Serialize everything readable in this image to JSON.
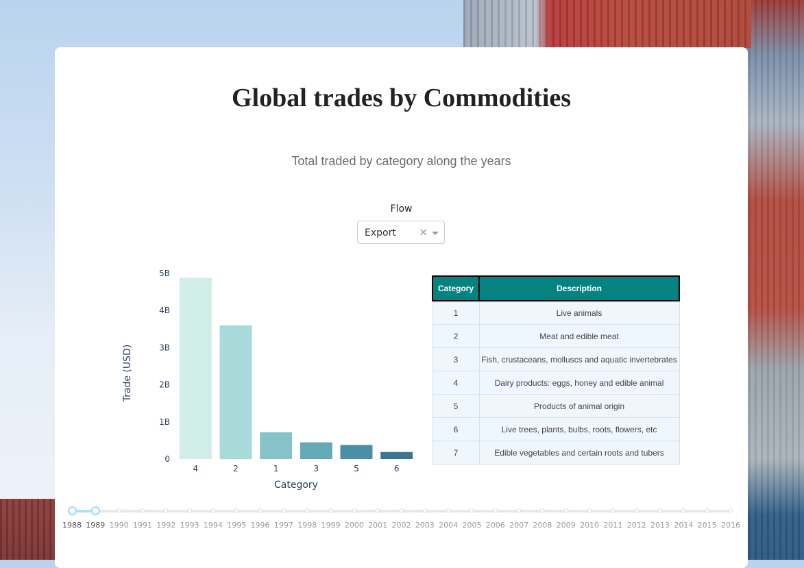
{
  "page": {
    "title": "Global trades by Commodities",
    "subtitle": "Total traded by category along the years"
  },
  "flow": {
    "label": "Flow",
    "selected": "Export",
    "clear_symbol": "×"
  },
  "chart_data": {
    "type": "bar",
    "categories": [
      "4",
      "2",
      "1",
      "3",
      "5",
      "6"
    ],
    "values": [
      4.88,
      3.6,
      0.72,
      0.45,
      0.38,
      0.19
    ],
    "value_unit": "B",
    "xlabel": "Category",
    "ylabel": "Trade (USD)",
    "ylim": [
      0,
      5
    ],
    "yticks": [
      "0",
      "1B",
      "2B",
      "3B",
      "4B",
      "5B"
    ],
    "colors": [
      "#d1ede7",
      "#a8dad9",
      "#86c3c9",
      "#64a9b8",
      "#4b8ea7",
      "#3b7592"
    ]
  },
  "table": {
    "headers": [
      "Category",
      "Description"
    ],
    "rows": [
      [
        "1",
        "Live animals"
      ],
      [
        "2",
        "Meat and edible meat"
      ],
      [
        "3",
        "Fish, crustaceans, molluscs and aquatic invertebrates"
      ],
      [
        "4",
        "Dairy products: eggs, honey and edible animal"
      ],
      [
        "5",
        "Products of animal origin"
      ],
      [
        "6",
        "Live trees, plants, bulbs, roots, flowers, etc"
      ],
      [
        "7",
        "Edible vegetables and certain roots and tubers"
      ]
    ],
    "header_color": "#068380"
  },
  "year_slider": {
    "years": [
      "1988",
      "1989",
      "1990",
      "1991",
      "1992",
      "1993",
      "1994",
      "1995",
      "1996",
      "1997",
      "1998",
      "1999",
      "2000",
      "2001",
      "2002",
      "2003",
      "2004",
      "2005",
      "2006",
      "2007",
      "2008",
      "2009",
      "2010",
      "2011",
      "2012",
      "2013",
      "2014",
      "2015",
      "2016"
    ],
    "range": [
      "1988",
      "1989"
    ],
    "accent": "#96dbfa"
  }
}
